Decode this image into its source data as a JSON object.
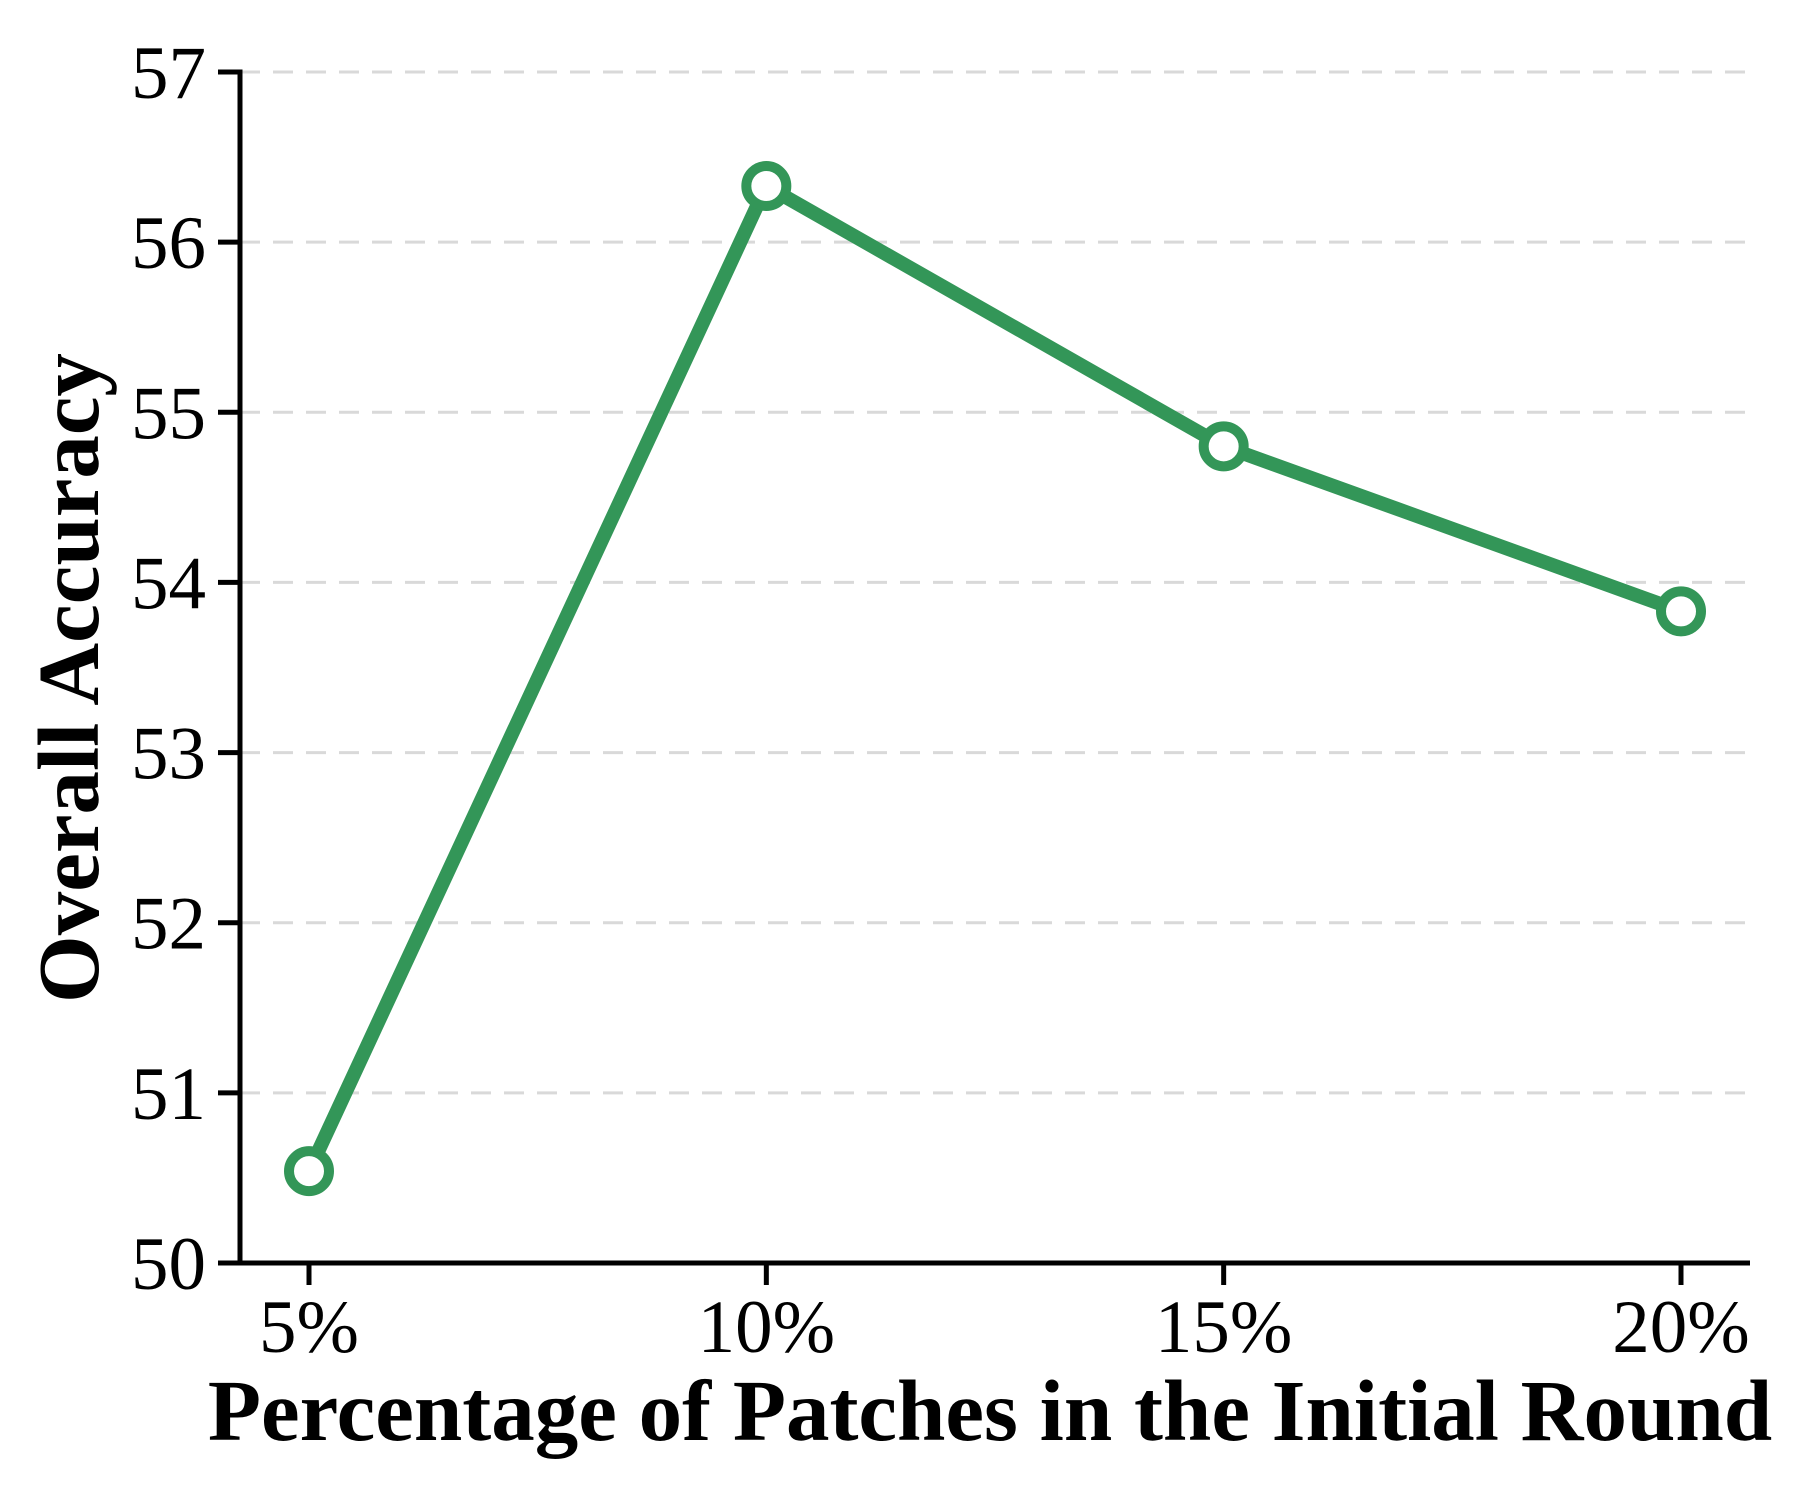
{
  "figure": {
    "background": "#ffffff"
  },
  "chart_data": {
    "type": "line",
    "title": "",
    "xlabel": "Percentage of Patches in the Initial Round",
    "ylabel": "Overall Accuracy",
    "categories": [
      "5%",
      "10%",
      "15%",
      "20%"
    ],
    "series": [
      {
        "name": "Overall Accuracy",
        "values": [
          50.54,
          56.33,
          54.8,
          53.83
        ]
      }
    ],
    "ylim": [
      50,
      57
    ],
    "yticks": [
      50,
      51,
      52,
      53,
      54,
      55,
      56,
      57
    ],
    "grid": "horizontal-dashed",
    "legend_position": "none",
    "marker": "circle-open",
    "colors": {
      "line": "#339658",
      "marker_fill": "#ffffff",
      "grid": "#d9d9d9",
      "axis": "#000000",
      "text": "#000000"
    }
  }
}
